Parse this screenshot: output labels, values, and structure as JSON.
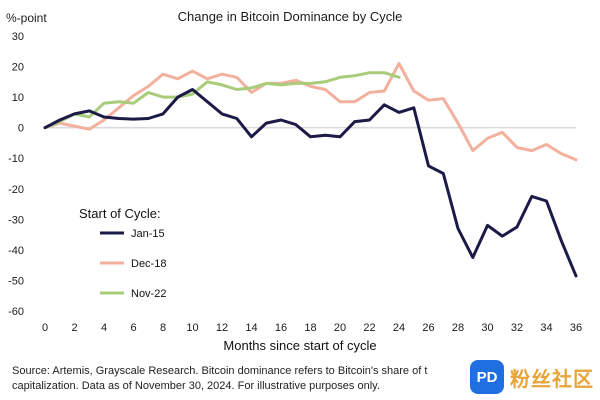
{
  "colors": {
    "jan15": "#1c1a47",
    "dec18": "#f2b09d",
    "nov22": "#a9cc7a",
    "gridline": "#d9d9d9",
    "watermark_blue": "#1f6fe0",
    "watermark_orange": "#e8a33a"
  },
  "source_text": "Source: Artemis, Grayscale Research. Bitcoin dominance refers to Bitcoin's share of t capitalization. Data as of November 30, 2024. For illustrative purposes only.",
  "watermark": {
    "logo_text": "PD",
    "text": "粉丝社区"
  },
  "chart_data": {
    "type": "line",
    "title": "Change in Bitcoin Dominance by Cycle",
    "unit_label": "%-point",
    "xlabel": "Months since start of cycle",
    "ylabel": "",
    "xlim": [
      0,
      36
    ],
    "ylim": [
      -60,
      30
    ],
    "xticks": [
      0,
      2,
      4,
      6,
      8,
      10,
      12,
      14,
      16,
      18,
      20,
      22,
      24,
      26,
      28,
      30,
      32,
      34,
      36
    ],
    "yticks": [
      30,
      20,
      10,
      0,
      -10,
      -20,
      -30,
      -40,
      -50,
      -60
    ],
    "zero_line": true,
    "legend_title": "Start of Cycle:",
    "legend_position": "lower-left",
    "series": [
      {
        "name": "Jan-15",
        "color_key": "jan15",
        "x": [
          0,
          1,
          2,
          3,
          4,
          5,
          6,
          7,
          8,
          9,
          10,
          11,
          12,
          13,
          14,
          15,
          16,
          17,
          18,
          19,
          20,
          21,
          22,
          23,
          24,
          25,
          26,
          27,
          28,
          29,
          30,
          31,
          32,
          33,
          34,
          35,
          36
        ],
        "y": [
          0,
          2.5,
          4.5,
          5.5,
          3.5,
          3.0,
          2.8,
          3.0,
          4.5,
          10.0,
          12.5,
          8.5,
          4.5,
          3.0,
          -3.0,
          1.5,
          2.5,
          1.0,
          -3.0,
          -2.5,
          -3.0,
          2.0,
          2.5,
          7.5,
          5.0,
          6.5,
          -12.5,
          -15.0,
          -33.0,
          -42.5,
          -32.0,
          -35.5,
          -32.5,
          -22.5,
          -24.0,
          -37.0,
          -48.5
        ]
      },
      {
        "name": "Dec-18",
        "color_key": "dec18",
        "x": [
          0,
          1,
          2,
          3,
          4,
          5,
          6,
          7,
          8,
          9,
          10,
          11,
          12,
          13,
          14,
          15,
          16,
          17,
          18,
          19,
          20,
          21,
          22,
          23,
          24,
          25,
          26,
          27,
          28,
          29,
          30,
          31,
          32,
          33,
          34,
          35,
          36
        ],
        "y": [
          0,
          1.5,
          0.5,
          -0.5,
          2.5,
          6.5,
          10.5,
          13.5,
          17.5,
          16.0,
          18.5,
          16.0,
          17.5,
          16.5,
          11.5,
          14.5,
          14.5,
          15.5,
          13.5,
          12.5,
          8.5,
          8.5,
          11.5,
          12.0,
          21.0,
          12.0,
          9.0,
          9.5,
          1.5,
          -7.5,
          -3.5,
          -1.5,
          -6.5,
          -7.5,
          -5.5,
          -8.5,
          -10.5
        ]
      },
      {
        "name": "Nov-22",
        "color_key": "nov22",
        "x": [
          0,
          1,
          2,
          3,
          4,
          5,
          6,
          7,
          8,
          9,
          10,
          11,
          12,
          13,
          14,
          15,
          16,
          17,
          18,
          19,
          20,
          21,
          22,
          23,
          24
        ],
        "y": [
          0,
          2.0,
          4.5,
          3.5,
          8.0,
          8.5,
          8.0,
          11.5,
          10.0,
          10.0,
          11.0,
          15.0,
          14.0,
          12.5,
          13.0,
          14.5,
          14.0,
          14.5,
          14.5,
          15.0,
          16.5,
          17.0,
          18.0,
          18.0,
          16.5
        ]
      }
    ]
  }
}
